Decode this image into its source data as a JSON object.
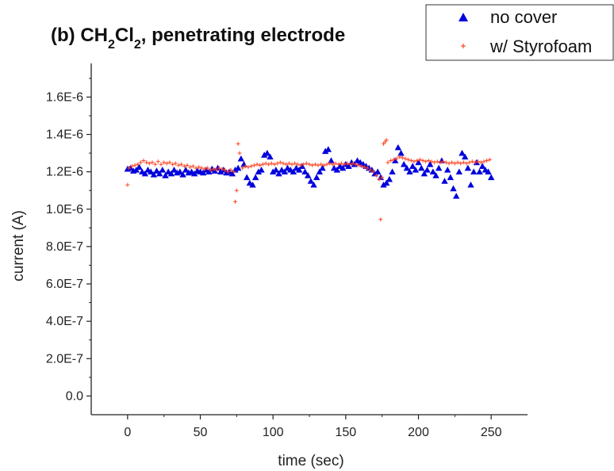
{
  "chart_data": {
    "type": "scatter",
    "title": {
      "prefix": "(b) CH",
      "sub1": "2",
      "mid": "Cl",
      "sub2": "2",
      "suffix": ", penetrating electrode"
    },
    "xlabel": "time (sec)",
    "ylabel": "current (A)",
    "xlim": [
      -25,
      275
    ],
    "ylim": [
      -1e-07,
      1.78e-06
    ],
    "x_ticks": [
      0,
      50,
      100,
      150,
      200,
      250
    ],
    "x_tick_labels": [
      "0",
      "50",
      "100",
      "150",
      "200",
      "250"
    ],
    "y_ticks": [
      0,
      2e-07,
      4e-07,
      6e-07,
      8e-07,
      1e-06,
      1.2e-06,
      1.4e-06,
      1.6e-06
    ],
    "y_tick_labels": [
      "0.0",
      "2.0E-7",
      "4.0E-7",
      "6.0E-7",
      "8.0E-7",
      "1.0E-6",
      "1.2E-6",
      "1.4E-6",
      "1.6E-6"
    ],
    "grid": false,
    "legend": "top-right",
    "series": [
      {
        "name": "no cover",
        "marker": "triangle",
        "color": "#0000dd",
        "points": [
          [
            0,
            1.215e-06
          ],
          [
            2,
            1.22e-06
          ],
          [
            4,
            1.205e-06
          ],
          [
            6,
            1.21e-06
          ],
          [
            8,
            1.225e-06
          ],
          [
            10,
            1.2e-06
          ],
          [
            12,
            1.19e-06
          ],
          [
            14,
            1.21e-06
          ],
          [
            16,
            1.2e-06
          ],
          [
            18,
            1.185e-06
          ],
          [
            20,
            1.205e-06
          ],
          [
            22,
            1.19e-06
          ],
          [
            24,
            1.21e-06
          ],
          [
            26,
            1.18e-06
          ],
          [
            28,
            1.2e-06
          ],
          [
            30,
            1.19e-06
          ],
          [
            32,
            1.21e-06
          ],
          [
            34,
            1.195e-06
          ],
          [
            36,
            1.2e-06
          ],
          [
            38,
            1.185e-06
          ],
          [
            40,
            1.21e-06
          ],
          [
            42,
            1.195e-06
          ],
          [
            44,
            1.2e-06
          ],
          [
            46,
            1.19e-06
          ],
          [
            48,
            1.205e-06
          ],
          [
            50,
            1.2e-06
          ],
          [
            52,
            1.195e-06
          ],
          [
            54,
            1.21e-06
          ],
          [
            56,
            1.2e-06
          ],
          [
            58,
            1.215e-06
          ],
          [
            60,
            1.205e-06
          ],
          [
            62,
            1.22e-06
          ],
          [
            64,
            1.2e-06
          ],
          [
            66,
            1.21e-06
          ],
          [
            68,
            1.195e-06
          ],
          [
            70,
            1.2e-06
          ],
          [
            72,
            1.19e-06
          ],
          [
            74,
            1.21e-06
          ],
          [
            76,
            1.22e-06
          ],
          [
            78,
            1.27e-06
          ],
          [
            80,
            1.24e-06
          ],
          [
            82,
            1.17e-06
          ],
          [
            84,
            1.14e-06
          ],
          [
            86,
            1.13e-06
          ],
          [
            88,
            1.17e-06
          ],
          [
            90,
            1.2e-06
          ],
          [
            92,
            1.21e-06
          ],
          [
            94,
            1.29e-06
          ],
          [
            96,
            1.3e-06
          ],
          [
            98,
            1.28e-06
          ],
          [
            100,
            1.2e-06
          ],
          [
            102,
            1.21e-06
          ],
          [
            104,
            1.19e-06
          ],
          [
            106,
            1.21e-06
          ],
          [
            108,
            1.2e-06
          ],
          [
            110,
            1.22e-06
          ],
          [
            112,
            1.21e-06
          ],
          [
            114,
            1.2e-06
          ],
          [
            116,
            1.22e-06
          ],
          [
            118,
            1.21e-06
          ],
          [
            120,
            1.23e-06
          ],
          [
            122,
            1.2e-06
          ],
          [
            124,
            1.18e-06
          ],
          [
            126,
            1.15e-06
          ],
          [
            128,
            1.13e-06
          ],
          [
            130,
            1.17e-06
          ],
          [
            132,
            1.2e-06
          ],
          [
            134,
            1.22e-06
          ],
          [
            136,
            1.31e-06
          ],
          [
            138,
            1.32e-06
          ],
          [
            140,
            1.26e-06
          ],
          [
            142,
            1.22e-06
          ],
          [
            144,
            1.21e-06
          ],
          [
            146,
            1.23e-06
          ],
          [
            148,
            1.22e-06
          ],
          [
            150,
            1.24e-06
          ],
          [
            152,
            1.23e-06
          ],
          [
            154,
            1.25e-06
          ],
          [
            156,
            1.24e-06
          ],
          [
            158,
            1.26e-06
          ],
          [
            160,
            1.25e-06
          ],
          [
            162,
            1.24e-06
          ],
          [
            164,
            1.23e-06
          ],
          [
            166,
            1.22e-06
          ],
          [
            168,
            1.21e-06
          ],
          [
            170,
            1.19e-06
          ],
          [
            172,
            1.2e-06
          ],
          [
            174,
            1.17e-06
          ],
          [
            176,
            1.13e-06
          ],
          [
            178,
            1.14e-06
          ],
          [
            180,
            1.16e-06
          ],
          [
            182,
            1.2e-06
          ],
          [
            184,
            1.26e-06
          ],
          [
            186,
            1.33e-06
          ],
          [
            188,
            1.3e-06
          ],
          [
            190,
            1.24e-06
          ],
          [
            192,
            1.22e-06
          ],
          [
            194,
            1.2e-06
          ],
          [
            196,
            1.23e-06
          ],
          [
            198,
            1.21e-06
          ],
          [
            200,
            1.25e-06
          ],
          [
            202,
            1.22e-06
          ],
          [
            204,
            1.19e-06
          ],
          [
            206,
            1.21e-06
          ],
          [
            208,
            1.24e-06
          ],
          [
            210,
            1.2e-06
          ],
          [
            212,
            1.18e-06
          ],
          [
            214,
            1.22e-06
          ],
          [
            216,
            1.26e-06
          ],
          [
            218,
            1.15e-06
          ],
          [
            220,
            1.21e-06
          ],
          [
            222,
            1.17e-06
          ],
          [
            224,
            1.11e-06
          ],
          [
            226,
            1.07e-06
          ],
          [
            228,
            1.2e-06
          ],
          [
            230,
            1.3e-06
          ],
          [
            232,
            1.28e-06
          ],
          [
            234,
            1.22e-06
          ],
          [
            236,
            1.13e-06
          ],
          [
            238,
            1.2e-06
          ],
          [
            240,
            1.25e-06
          ],
          [
            242,
            1.2e-06
          ],
          [
            244,
            1.23e-06
          ],
          [
            246,
            1.21e-06
          ],
          [
            248,
            1.2e-06
          ],
          [
            250,
            1.17e-06
          ]
        ]
      },
      {
        "name": "w/ Styrofoam",
        "marker": "plus",
        "color": "#ff4422",
        "points": [
          [
            0,
            1.13e-06
          ],
          [
            1,
            1.22e-06
          ],
          [
            3,
            1.23e-06
          ],
          [
            5,
            1.235e-06
          ],
          [
            7,
            1.24e-06
          ],
          [
            9,
            1.25e-06
          ],
          [
            11,
            1.26e-06
          ],
          [
            13,
            1.25e-06
          ],
          [
            15,
            1.245e-06
          ],
          [
            17,
            1.25e-06
          ],
          [
            19,
            1.24e-06
          ],
          [
            21,
            1.255e-06
          ],
          [
            23,
            1.24e-06
          ],
          [
            25,
            1.25e-06
          ],
          [
            27,
            1.245e-06
          ],
          [
            29,
            1.25e-06
          ],
          [
            31,
            1.24e-06
          ],
          [
            33,
            1.245e-06
          ],
          [
            35,
            1.235e-06
          ],
          [
            37,
            1.24e-06
          ],
          [
            39,
            1.23e-06
          ],
          [
            41,
            1.235e-06
          ],
          [
            43,
            1.225e-06
          ],
          [
            45,
            1.23e-06
          ],
          [
            47,
            1.22e-06
          ],
          [
            49,
            1.225e-06
          ],
          [
            51,
            1.22e-06
          ],
          [
            53,
            1.215e-06
          ],
          [
            55,
            1.22e-06
          ],
          [
            57,
            1.21e-06
          ],
          [
            59,
            1.215e-06
          ],
          [
            61,
            1.21e-06
          ],
          [
            63,
            1.22e-06
          ],
          [
            65,
            1.215e-06
          ],
          [
            67,
            1.21e-06
          ],
          [
            69,
            1.2e-06
          ],
          [
            71,
            1.21e-06
          ],
          [
            73,
            1.2e-06
          ],
          [
            74,
            1.04e-06
          ],
          [
            75,
            1.1e-06
          ],
          [
            76,
            1.35e-06
          ],
          [
            77,
            1.3e-06
          ],
          [
            79,
            1.22e-06
          ],
          [
            81,
            1.23e-06
          ],
          [
            83,
            1.225e-06
          ],
          [
            85,
            1.23e-06
          ],
          [
            87,
            1.235e-06
          ],
          [
            89,
            1.24e-06
          ],
          [
            91,
            1.235e-06
          ],
          [
            93,
            1.24e-06
          ],
          [
            95,
            1.245e-06
          ],
          [
            97,
            1.24e-06
          ],
          [
            99,
            1.245e-06
          ],
          [
            101,
            1.24e-06
          ],
          [
            103,
            1.245e-06
          ],
          [
            105,
            1.25e-06
          ],
          [
            107,
            1.245e-06
          ],
          [
            109,
            1.24e-06
          ],
          [
            111,
            1.245e-06
          ],
          [
            113,
            1.24e-06
          ],
          [
            115,
            1.245e-06
          ],
          [
            117,
            1.24e-06
          ],
          [
            119,
            1.235e-06
          ],
          [
            121,
            1.24e-06
          ],
          [
            123,
            1.245e-06
          ],
          [
            125,
            1.24e-06
          ],
          [
            127,
            1.235e-06
          ],
          [
            129,
            1.24e-06
          ],
          [
            131,
            1.235e-06
          ],
          [
            133,
            1.24e-06
          ],
          [
            135,
            1.235e-06
          ],
          [
            137,
            1.24e-06
          ],
          [
            139,
            1.245e-06
          ],
          [
            141,
            1.24e-06
          ],
          [
            143,
            1.245e-06
          ],
          [
            145,
            1.24e-06
          ],
          [
            147,
            1.245e-06
          ],
          [
            149,
            1.24e-06
          ],
          [
            151,
            1.245e-06
          ],
          [
            153,
            1.24e-06
          ],
          [
            155,
            1.245e-06
          ],
          [
            157,
            1.24e-06
          ],
          [
            159,
            1.235e-06
          ],
          [
            161,
            1.23e-06
          ],
          [
            163,
            1.225e-06
          ],
          [
            165,
            1.22e-06
          ],
          [
            167,
            1.21e-06
          ],
          [
            169,
            1.2e-06
          ],
          [
            171,
            1.18e-06
          ],
          [
            173,
            1.16e-06
          ],
          [
            174,
            9.45e-07
          ],
          [
            175,
            1.17e-06
          ],
          [
            176,
            1.35e-06
          ],
          [
            177,
            1.36e-06
          ],
          [
            178,
            1.37e-06
          ],
          [
            179,
            1.25e-06
          ],
          [
            181,
            1.26e-06
          ],
          [
            183,
            1.265e-06
          ],
          [
            185,
            1.27e-06
          ],
          [
            187,
            1.28e-06
          ],
          [
            189,
            1.275e-06
          ],
          [
            191,
            1.27e-06
          ],
          [
            193,
            1.265e-06
          ],
          [
            195,
            1.26e-06
          ],
          [
            197,
            1.255e-06
          ],
          [
            199,
            1.26e-06
          ],
          [
            201,
            1.265e-06
          ],
          [
            203,
            1.26e-06
          ],
          [
            205,
            1.255e-06
          ],
          [
            207,
            1.26e-06
          ],
          [
            209,
            1.255e-06
          ],
          [
            211,
            1.25e-06
          ],
          [
            213,
            1.255e-06
          ],
          [
            215,
            1.25e-06
          ],
          [
            217,
            1.255e-06
          ],
          [
            219,
            1.25e-06
          ],
          [
            221,
            1.245e-06
          ],
          [
            223,
            1.25e-06
          ],
          [
            225,
            1.245e-06
          ],
          [
            227,
            1.25e-06
          ],
          [
            229,
            1.245e-06
          ],
          [
            231,
            1.25e-06
          ],
          [
            233,
            1.245e-06
          ],
          [
            235,
            1.25e-06
          ],
          [
            237,
            1.255e-06
          ],
          [
            239,
            1.25e-06
          ],
          [
            241,
            1.255e-06
          ],
          [
            243,
            1.25e-06
          ],
          [
            245,
            1.255e-06
          ],
          [
            247,
            1.26e-06
          ],
          [
            249,
            1.265e-06
          ]
        ]
      }
    ]
  }
}
